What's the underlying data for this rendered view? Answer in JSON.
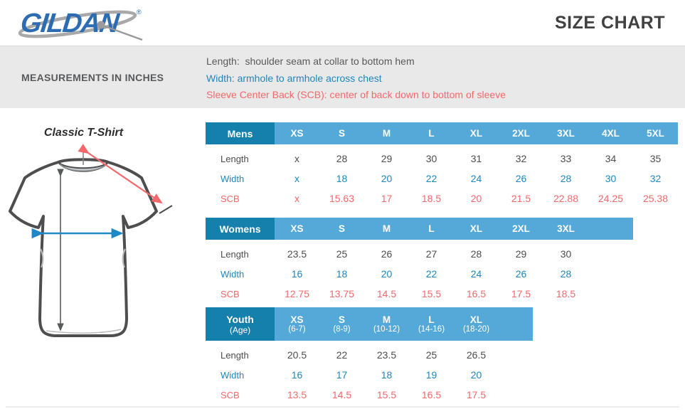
{
  "brand": {
    "logo_text": "GILDAN",
    "registered_mark": "®",
    "page_title": "SIZE CHART"
  },
  "info_bar": {
    "label": "MEASUREMENTS IN INCHES",
    "length_line": "Length:  shoulder seam at collar to bottom hem",
    "width_line": "Width: armhole to armhole across chest",
    "scb_line": "Sleeve Center Back (SCB): center of back down to bottom of sleeve"
  },
  "illustration": {
    "title": "Classic T-Shirt"
  },
  "colors": {
    "header_dark_blue": "#1580ac",
    "header_light_blue": "#55a9d9",
    "length_text": "#4d4d4f",
    "width_text": "#1e87bd",
    "scb_text": "#f4686b",
    "logo_blue": "#2b6cb3",
    "info_bar_bg": "#e9e9e9"
  },
  "tables": [
    {
      "name": "Mens",
      "name_sub": "",
      "columns": [
        {
          "size": "XS",
          "sub": ""
        },
        {
          "size": "S",
          "sub": ""
        },
        {
          "size": "M",
          "sub": ""
        },
        {
          "size": "L",
          "sub": ""
        },
        {
          "size": "XL",
          "sub": ""
        },
        {
          "size": "2XL",
          "sub": ""
        },
        {
          "size": "3XL",
          "sub": ""
        },
        {
          "size": "4XL",
          "sub": ""
        },
        {
          "size": "5XL",
          "sub": ""
        }
      ],
      "rows": [
        {
          "label": "Length",
          "style": "length",
          "values": [
            "x",
            "28",
            "29",
            "30",
            "31",
            "32",
            "33",
            "34",
            "35"
          ]
        },
        {
          "label": "Width",
          "style": "width",
          "values": [
            "x",
            "18",
            "20",
            "22",
            "24",
            "26",
            "28",
            "30",
            "32"
          ]
        },
        {
          "label": "SCB",
          "style": "scb",
          "values": [
            "x",
            "15.63",
            "17",
            "18.5",
            "20",
            "21.5",
            "22.88",
            "24.25",
            "25.38"
          ]
        }
      ]
    },
    {
      "name": "Womens",
      "name_sub": "",
      "columns": [
        {
          "size": "XS",
          "sub": ""
        },
        {
          "size": "S",
          "sub": ""
        },
        {
          "size": "M",
          "sub": ""
        },
        {
          "size": "L",
          "sub": ""
        },
        {
          "size": "XL",
          "sub": ""
        },
        {
          "size": "2XL",
          "sub": ""
        },
        {
          "size": "3XL",
          "sub": ""
        }
      ],
      "rows": [
        {
          "label": "Length",
          "style": "length",
          "values": [
            "23.5",
            "25",
            "26",
            "27",
            "28",
            "29",
            "30"
          ]
        },
        {
          "label": "Width",
          "style": "width",
          "values": [
            "16",
            "18",
            "20",
            "22",
            "24",
            "26",
            "28"
          ]
        },
        {
          "label": "SCB",
          "style": "scb",
          "values": [
            "12.75",
            "13.75",
            "14.5",
            "15.5",
            "16.5",
            "17.5",
            "18.5"
          ]
        }
      ]
    },
    {
      "name": "Youth",
      "name_sub": "(Age)",
      "columns": [
        {
          "size": "XS",
          "sub": "(6-7)"
        },
        {
          "size": "S",
          "sub": "(8-9)"
        },
        {
          "size": "M",
          "sub": "(10-12)"
        },
        {
          "size": "L",
          "sub": "(14-16)"
        },
        {
          "size": "XL",
          "sub": "(18-20)"
        }
      ],
      "rows": [
        {
          "label": "Length",
          "style": "length",
          "values": [
            "20.5",
            "22",
            "23.5",
            "25",
            "26.5"
          ]
        },
        {
          "label": "Width",
          "style": "width",
          "values": [
            "16",
            "17",
            "18",
            "19",
            "20"
          ]
        },
        {
          "label": "SCB",
          "style": "scb",
          "values": [
            "13.5",
            "14.5",
            "15.5",
            "16.5",
            "17.5"
          ]
        }
      ]
    }
  ]
}
